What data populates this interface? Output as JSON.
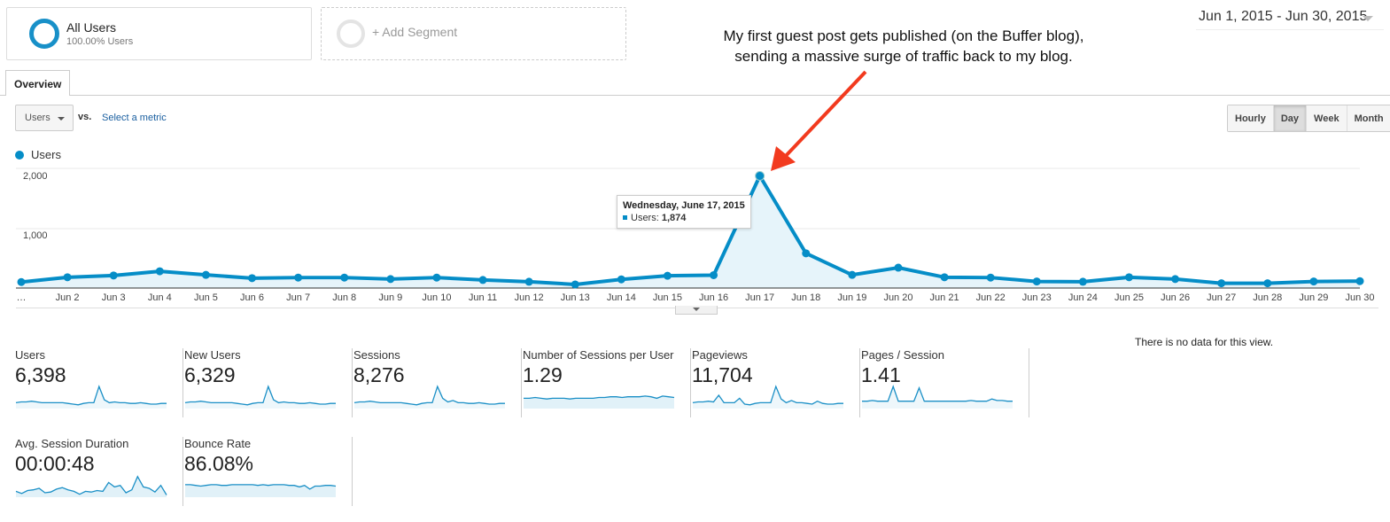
{
  "segments": [
    {
      "name": "All Users",
      "sub": "100.00% Users"
    },
    {
      "name": "+ Add Segment"
    }
  ],
  "date_range": "Jun 1, 2015 - Jun 30, 2015",
  "annotation": {
    "line1": "My first guest post gets published (on the Buffer blog),",
    "line2": "sending a massive surge of traffic back to my blog.",
    "arrow_color": "#f23a1e"
  },
  "tabs": [
    {
      "label": "Overview"
    }
  ],
  "controls": {
    "metric": "Users",
    "vs": "vs.",
    "select_metric": "Select a metric",
    "granularity": [
      "Hourly",
      "Day",
      "Week",
      "Month"
    ],
    "active_granularity": "Day"
  },
  "legend": {
    "label": "Users",
    "color": "#058dc7"
  },
  "tooltip": {
    "date": "Wednesday, June 17, 2015",
    "label": "Users:",
    "value": "1,874"
  },
  "chart_data": {
    "type": "line",
    "title": "",
    "xlabel": "",
    "ylabel": "",
    "series": [
      {
        "name": "Users",
        "values": [
          100,
          180,
          210,
          280,
          220,
          165,
          175,
          175,
          150,
          175,
          135,
          105,
          60,
          145,
          205,
          215,
          1874,
          580,
          220,
          340,
          180,
          175,
          110,
          105,
          180,
          150,
          80,
          80,
          110,
          115
        ]
      }
    ],
    "x": [
      "Jun 1",
      "Jun 2",
      "Jun 3",
      "Jun 4",
      "Jun 5",
      "Jun 6",
      "Jun 7",
      "Jun 8",
      "Jun 9",
      "Jun 10",
      "Jun 11",
      "Jun 12",
      "Jun 13",
      "Jun 14",
      "Jun 15",
      "Jun 16",
      "Jun 17",
      "Jun 18",
      "Jun 19",
      "Jun 20",
      "Jun 21",
      "Jun 22",
      "Jun 23",
      "Jun 24",
      "Jun 25",
      "Jun 26",
      "Jun 27",
      "Jun 28",
      "Jun 29",
      "Jun 30"
    ],
    "x_tick_labels": [
      "…",
      "Jun 2",
      "Jun 3",
      "Jun 4",
      "Jun 5",
      "Jun 6",
      "Jun 7",
      "Jun 8",
      "Jun 9",
      "Jun 10",
      "Jun 11",
      "Jun 12",
      "Jun 13",
      "Jun 14",
      "Jun 15",
      "Jun 16",
      "Jun 17",
      "Jun 18",
      "Jun 19",
      "Jun 20",
      "Jun 21",
      "Jun 22",
      "Jun 23",
      "Jun 24",
      "Jun 25",
      "Jun 26",
      "Jun 27",
      "Jun 28",
      "Jun 29",
      "Jun 30"
    ],
    "y_ticks": [
      "1,000",
      "2,000"
    ],
    "ylim": [
      0,
      2000
    ],
    "grid": true,
    "legend_position": "top-left",
    "highlight": {
      "x": "Jun 17",
      "value": 1874
    }
  },
  "scorecards": [
    {
      "label": "Users",
      "value": "6,398",
      "spark": [
        8,
        9,
        9,
        10,
        9,
        8,
        8,
        8,
        8,
        8,
        7,
        6,
        5,
        7,
        8,
        8,
        30,
        12,
        8,
        9,
        8,
        8,
        7,
        7,
        8,
        7,
        6,
        6,
        7,
        7
      ],
      "filled": false
    },
    {
      "label": "New Users",
      "value": "6,329",
      "spark": [
        8,
        9,
        9,
        10,
        9,
        8,
        8,
        8,
        8,
        8,
        7,
        6,
        5,
        7,
        8,
        8,
        30,
        12,
        8,
        9,
        8,
        8,
        7,
        7,
        8,
        7,
        6,
        6,
        7,
        7
      ],
      "filled": false
    },
    {
      "label": "Sessions",
      "value": "8,276",
      "spark": [
        8,
        9,
        9,
        10,
        9,
        8,
        8,
        8,
        8,
        8,
        7,
        6,
        5,
        7,
        8,
        8,
        30,
        14,
        9,
        11,
        8,
        8,
        7,
        7,
        8,
        7,
        6,
        6,
        7,
        7
      ],
      "filled": false
    },
    {
      "label": "Number of Sessions per User",
      "value": "1.29",
      "spark": [
        14,
        14,
        15,
        14,
        13,
        14,
        14,
        14,
        13,
        14,
        14,
        14,
        14,
        15,
        15,
        16,
        16,
        15,
        16,
        16,
        16,
        17,
        16,
        14,
        17,
        16,
        15
      ],
      "filled": true
    },
    {
      "label": "Pageviews",
      "value": "11,704",
      "spark": [
        8,
        9,
        9,
        10,
        9,
        18,
        8,
        8,
        8,
        14,
        6,
        5,
        7,
        8,
        8,
        8,
        30,
        13,
        8,
        11,
        8,
        8,
        7,
        6,
        10,
        7,
        6,
        6,
        7,
        7
      ],
      "filled": false
    },
    {
      "label": "Pages / Session",
      "value": "1.41",
      "spark": [
        10,
        10,
        11,
        10,
        10,
        10,
        30,
        10,
        10,
        10,
        10,
        28,
        10,
        10,
        10,
        10,
        10,
        10,
        10,
        10,
        10,
        11,
        10,
        10,
        10,
        13,
        11,
        11,
        10,
        10
      ],
      "filled": false
    },
    {
      "label": "Avg. Session Duration",
      "value": "00:00:48",
      "spark": [
        8,
        5,
        9,
        10,
        12,
        6,
        7,
        11,
        13,
        10,
        8,
        4,
        8,
        7,
        9,
        8,
        20,
        14,
        16,
        6,
        10,
        28,
        14,
        12,
        7,
        16,
        3
      ],
      "filled": true
    },
    {
      "label": "Bounce Rate",
      "value": "86.08%",
      "spark": [
        17,
        17,
        16,
        15,
        16,
        17,
        17,
        16,
        16,
        17,
        17,
        17,
        17,
        17,
        16,
        17,
        16,
        17,
        17,
        17,
        16,
        16,
        14,
        16,
        11,
        15,
        15,
        16,
        16,
        15
      ],
      "filled": true
    }
  ],
  "no_data_text": "There is no data for this view."
}
